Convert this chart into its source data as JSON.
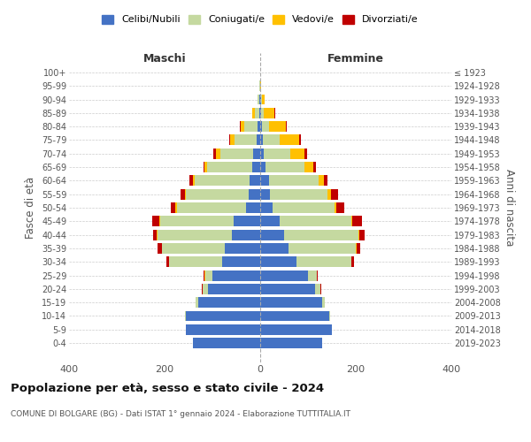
{
  "age_groups": [
    "0-4",
    "5-9",
    "10-14",
    "15-19",
    "20-24",
    "25-29",
    "30-34",
    "35-39",
    "40-44",
    "45-49",
    "50-54",
    "55-59",
    "60-64",
    "65-69",
    "70-74",
    "75-79",
    "80-84",
    "85-89",
    "90-94",
    "95-99",
    "100+"
  ],
  "birth_years": [
    "2019-2023",
    "2014-2018",
    "2009-2013",
    "2004-2008",
    "1999-2003",
    "1994-1998",
    "1989-1993",
    "1984-1988",
    "1979-1983",
    "1974-1978",
    "1969-1973",
    "1964-1968",
    "1959-1963",
    "1954-1958",
    "1949-1953",
    "1944-1948",
    "1939-1943",
    "1934-1938",
    "1929-1933",
    "1924-1928",
    "≤ 1923"
  ],
  "maschi": {
    "celibi": [
      140,
      155,
      155,
      130,
      110,
      100,
      80,
      75,
      60,
      55,
      30,
      25,
      22,
      16,
      14,
      8,
      5,
      2,
      1,
      0,
      0
    ],
    "coniugati": [
      0,
      0,
      2,
      5,
      10,
      15,
      110,
      130,
      155,
      155,
      145,
      130,
      115,
      95,
      70,
      45,
      28,
      10,
      4,
      1,
      0
    ],
    "vedovi": [
      0,
      0,
      0,
      0,
      0,
      1,
      1,
      1,
      1,
      2,
      2,
      2,
      3,
      5,
      8,
      10,
      8,
      4,
      1,
      0,
      0
    ],
    "divorziati": [
      0,
      0,
      0,
      0,
      2,
      2,
      5,
      8,
      8,
      14,
      10,
      10,
      8,
      3,
      6,
      2,
      1,
      0,
      0,
      0,
      0
    ]
  },
  "femmine": {
    "nubili": [
      130,
      150,
      145,
      130,
      115,
      100,
      75,
      60,
      50,
      40,
      25,
      20,
      18,
      12,
      8,
      5,
      3,
      2,
      1,
      0,
      0
    ],
    "coniugate": [
      0,
      0,
      2,
      5,
      10,
      18,
      115,
      140,
      155,
      150,
      130,
      120,
      105,
      80,
      55,
      35,
      15,
      6,
      2,
      0,
      0
    ],
    "vedove": [
      0,
      0,
      0,
      0,
      0,
      1,
      1,
      2,
      2,
      3,
      5,
      8,
      10,
      20,
      30,
      42,
      35,
      22,
      6,
      1,
      0
    ],
    "divorziate": [
      0,
      0,
      0,
      0,
      2,
      2,
      5,
      8,
      12,
      20,
      15,
      15,
      8,
      4,
      5,
      3,
      2,
      1,
      0,
      0,
      0
    ]
  },
  "colors": {
    "celibi": "#4472c4",
    "coniugati": "#c5d9a0",
    "vedovi": "#ffc000",
    "divorziati": "#c00000"
  },
  "xlim": 400,
  "title": "Popolazione per età, sesso e stato civile - 2024",
  "subtitle": "COMUNE DI BOLGARE (BG) - Dati ISTAT 1° gennaio 2024 - Elaborazione TUTTITALIA.IT",
  "ylabel_left": "Fasce di età",
  "ylabel_right": "Anni di nascita",
  "xlabel_maschi": "Maschi",
  "xlabel_femmine": "Femmine",
  "legend_labels": [
    "Celibi/Nubili",
    "Coniugati/e",
    "Vedovi/e",
    "Divorziati/e"
  ],
  "bg_color": "#ffffff",
  "grid_color": "#cccccc"
}
